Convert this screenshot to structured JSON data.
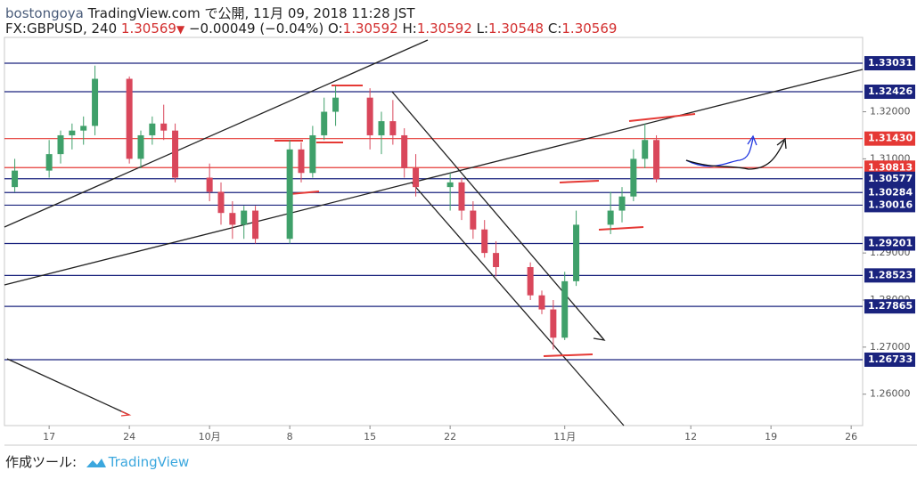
{
  "header": {
    "author": "bostongoya",
    "publish": "TradingView.com で公開, 11月 09, 2018 11:28 JST"
  },
  "legend": {
    "symbol": "FX:GBPUSD, 240",
    "last": "1.30569",
    "change": "−0.00049 (−0.04%)",
    "ohlc": [
      {
        "key": "O:",
        "value": "1.30592"
      },
      {
        "key": "H:",
        "value": "1.30592"
      },
      {
        "key": "L:",
        "value": "1.30548"
      },
      {
        "key": "C:",
        "value": "1.30569"
      }
    ]
  },
  "footer": {
    "made_with": "作成ツール:",
    "brand": "TradingView"
  },
  "chart_data": {
    "type": "candlestick",
    "x": [
      -3,
      0,
      1,
      2,
      3,
      4,
      7,
      8,
      9,
      10,
      11,
      14,
      15,
      16,
      17,
      18,
      21,
      22,
      23,
      24,
      25,
      28,
      29,
      30,
      31,
      32,
      35,
      36,
      37,
      38,
      39,
      42,
      43,
      44,
      45,
      46,
      49,
      50,
      51,
      52,
      53
    ],
    "open": [
      1.304,
      1.3075,
      1.311,
      1.315,
      1.316,
      1.317,
      1.327,
      1.31,
      1.315,
      1.3175,
      1.316,
      1.306,
      1.303,
      1.2985,
      1.296,
      1.299,
      1.293,
      1.312,
      1.307,
      1.315,
      1.32,
      1.323,
      1.315,
      1.318,
      1.315,
      1.308,
      1.304,
      1.305,
      1.299,
      1.295,
      1.29,
      1.287,
      1.281,
      1.278,
      1.272,
      1.284,
      1.296,
      1.299,
      1.302,
      1.31,
      1.314
    ],
    "high": [
      1.31,
      1.314,
      1.316,
      1.3175,
      1.319,
      1.3298,
      1.3275,
      1.316,
      1.319,
      1.3215,
      1.3175,
      1.309,
      1.305,
      1.301,
      1.3,
      1.3,
      1.314,
      1.3135,
      1.317,
      1.323,
      1.3255,
      1.325,
      1.32,
      1.3225,
      1.3165,
      1.311,
      1.307,
      1.306,
      1.301,
      1.297,
      1.2925,
      1.288,
      1.282,
      1.28,
      1.286,
      1.299,
      1.303,
      1.304,
      1.312,
      1.3175,
      1.315
    ],
    "low": [
      1.303,
      1.306,
      1.309,
      1.312,
      1.313,
      1.315,
      1.309,
      1.308,
      1.313,
      1.314,
      1.305,
      1.301,
      1.296,
      1.293,
      1.293,
      1.292,
      1.292,
      1.305,
      1.306,
      1.314,
      1.317,
      1.312,
      1.311,
      1.313,
      1.306,
      1.302,
      1.299,
      1.297,
      1.293,
      1.289,
      1.285,
      1.28,
      1.277,
      1.2695,
      1.2715,
      1.283,
      1.294,
      1.2965,
      1.301,
      1.308,
      1.305
    ],
    "close": [
      1.3075,
      1.311,
      1.315,
      1.316,
      1.317,
      1.327,
      1.31,
      1.315,
      1.3175,
      1.316,
      1.306,
      1.303,
      1.2985,
      1.296,
      1.299,
      1.293,
      1.312,
      1.307,
      1.315,
      1.32,
      1.323,
      1.315,
      1.318,
      1.315,
      1.308,
      1.304,
      1.305,
      1.299,
      1.295,
      1.29,
      1.287,
      1.281,
      1.278,
      1.272,
      1.284,
      1.296,
      1.299,
      1.302,
      1.31,
      1.314,
      1.30569
    ],
    "up_color": "#3fa06a",
    "down_color": "#d9475b",
    "xlim": [
      -3.9,
      71.0
    ],
    "xticks": [
      {
        "value": 0,
        "label": "17"
      },
      {
        "value": 7,
        "label": "24"
      },
      {
        "value": 14,
        "label": "10月"
      },
      {
        "value": 21,
        "label": "8"
      },
      {
        "value": 28,
        "label": "15"
      },
      {
        "value": 35,
        "label": "22"
      },
      {
        "value": 45,
        "label": "11月"
      },
      {
        "value": 56,
        "label": "12"
      },
      {
        "value": 63,
        "label": "19"
      },
      {
        "value": 70,
        "label": "26"
      }
    ],
    "ylim": [
      1.25333,
      1.3358
    ],
    "yticks": [
      {
        "value": 1.32,
        "label": "1.32000"
      },
      {
        "value": 1.31,
        "label": "1.31000"
      },
      {
        "value": 1.29,
        "label": "1.29000"
      },
      {
        "value": 1.28,
        "label": "1.28000"
      },
      {
        "value": 1.27,
        "label": "1.27000"
      },
      {
        "value": 1.26,
        "label": "1.26000"
      }
    ],
    "levels": [
      {
        "value": 1.33031,
        "color": "#1a237e"
      },
      {
        "value": 1.32426,
        "color": "#1a237e"
      },
      {
        "value": 1.3143,
        "label": "1.31430",
        "color": "#e53935"
      },
      {
        "value": 1.30813,
        "color": "#e53935"
      },
      {
        "value": 1.30577,
        "color": "#1a237e"
      },
      {
        "value": 1.30284,
        "color": "#1a237e"
      },
      {
        "value": 1.30016,
        "color": "#1a237e"
      },
      {
        "value": 1.29201,
        "color": "#1a237e"
      },
      {
        "value": 1.28523,
        "color": "#1a237e"
      },
      {
        "value": 1.27865,
        "color": "#1a237e"
      },
      {
        "value": 1.26733,
        "color": "#1a237e"
      }
    ]
  }
}
